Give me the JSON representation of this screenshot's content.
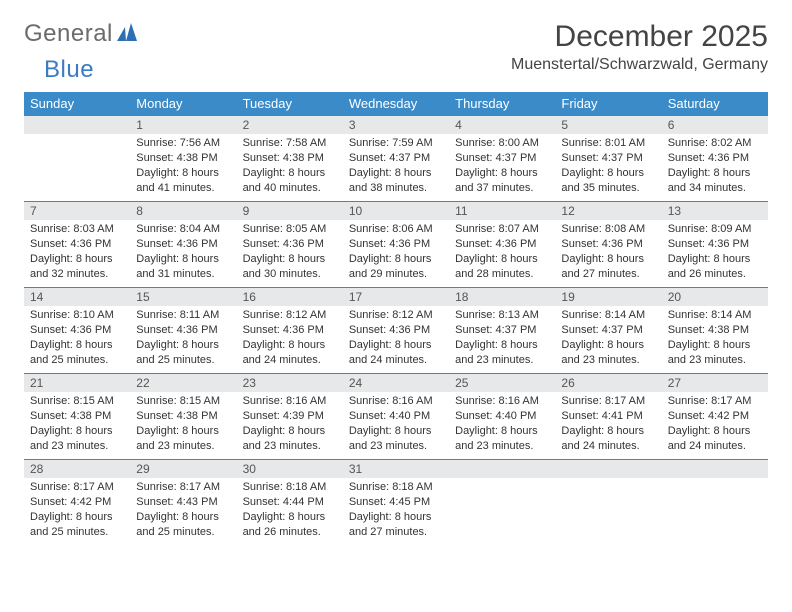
{
  "brand": {
    "part1": "General",
    "part2": "Blue"
  },
  "title": "December 2025",
  "location": "Muenstertal/Schwarzwald, Germany",
  "colors": {
    "header_bg": "#3b8bc9",
    "header_text": "#ffffff",
    "daynum_bg": "#e7e8e9",
    "daynum_border": "#5a7fa0",
    "text": "#333333",
    "brand_gray": "#6b6b6b",
    "brand_blue": "#3b7bc4"
  },
  "weekdays": [
    "Sunday",
    "Monday",
    "Tuesday",
    "Wednesday",
    "Thursday",
    "Friday",
    "Saturday"
  ],
  "first_weekday_offset": 1,
  "days": [
    {
      "n": 1,
      "sr": "7:56 AM",
      "ss": "4:38 PM",
      "dl": "8 hours and 41 minutes."
    },
    {
      "n": 2,
      "sr": "7:58 AM",
      "ss": "4:38 PM",
      "dl": "8 hours and 40 minutes."
    },
    {
      "n": 3,
      "sr": "7:59 AM",
      "ss": "4:37 PM",
      "dl": "8 hours and 38 minutes."
    },
    {
      "n": 4,
      "sr": "8:00 AM",
      "ss": "4:37 PM",
      "dl": "8 hours and 37 minutes."
    },
    {
      "n": 5,
      "sr": "8:01 AM",
      "ss": "4:37 PM",
      "dl": "8 hours and 35 minutes."
    },
    {
      "n": 6,
      "sr": "8:02 AM",
      "ss": "4:36 PM",
      "dl": "8 hours and 34 minutes."
    },
    {
      "n": 7,
      "sr": "8:03 AM",
      "ss": "4:36 PM",
      "dl": "8 hours and 32 minutes."
    },
    {
      "n": 8,
      "sr": "8:04 AM",
      "ss": "4:36 PM",
      "dl": "8 hours and 31 minutes."
    },
    {
      "n": 9,
      "sr": "8:05 AM",
      "ss": "4:36 PM",
      "dl": "8 hours and 30 minutes."
    },
    {
      "n": 10,
      "sr": "8:06 AM",
      "ss": "4:36 PM",
      "dl": "8 hours and 29 minutes."
    },
    {
      "n": 11,
      "sr": "8:07 AM",
      "ss": "4:36 PM",
      "dl": "8 hours and 28 minutes."
    },
    {
      "n": 12,
      "sr": "8:08 AM",
      "ss": "4:36 PM",
      "dl": "8 hours and 27 minutes."
    },
    {
      "n": 13,
      "sr": "8:09 AM",
      "ss": "4:36 PM",
      "dl": "8 hours and 26 minutes."
    },
    {
      "n": 14,
      "sr": "8:10 AM",
      "ss": "4:36 PM",
      "dl": "8 hours and 25 minutes."
    },
    {
      "n": 15,
      "sr": "8:11 AM",
      "ss": "4:36 PM",
      "dl": "8 hours and 25 minutes."
    },
    {
      "n": 16,
      "sr": "8:12 AM",
      "ss": "4:36 PM",
      "dl": "8 hours and 24 minutes."
    },
    {
      "n": 17,
      "sr": "8:12 AM",
      "ss": "4:36 PM",
      "dl": "8 hours and 24 minutes."
    },
    {
      "n": 18,
      "sr": "8:13 AM",
      "ss": "4:37 PM",
      "dl": "8 hours and 23 minutes."
    },
    {
      "n": 19,
      "sr": "8:14 AM",
      "ss": "4:37 PM",
      "dl": "8 hours and 23 minutes."
    },
    {
      "n": 20,
      "sr": "8:14 AM",
      "ss": "4:38 PM",
      "dl": "8 hours and 23 minutes."
    },
    {
      "n": 21,
      "sr": "8:15 AM",
      "ss": "4:38 PM",
      "dl": "8 hours and 23 minutes."
    },
    {
      "n": 22,
      "sr": "8:15 AM",
      "ss": "4:38 PM",
      "dl": "8 hours and 23 minutes."
    },
    {
      "n": 23,
      "sr": "8:16 AM",
      "ss": "4:39 PM",
      "dl": "8 hours and 23 minutes."
    },
    {
      "n": 24,
      "sr": "8:16 AM",
      "ss": "4:40 PM",
      "dl": "8 hours and 23 minutes."
    },
    {
      "n": 25,
      "sr": "8:16 AM",
      "ss": "4:40 PM",
      "dl": "8 hours and 23 minutes."
    },
    {
      "n": 26,
      "sr": "8:17 AM",
      "ss": "4:41 PM",
      "dl": "8 hours and 24 minutes."
    },
    {
      "n": 27,
      "sr": "8:17 AM",
      "ss": "4:42 PM",
      "dl": "8 hours and 24 minutes."
    },
    {
      "n": 28,
      "sr": "8:17 AM",
      "ss": "4:42 PM",
      "dl": "8 hours and 25 minutes."
    },
    {
      "n": 29,
      "sr": "8:17 AM",
      "ss": "4:43 PM",
      "dl": "8 hours and 25 minutes."
    },
    {
      "n": 30,
      "sr": "8:18 AM",
      "ss": "4:44 PM",
      "dl": "8 hours and 26 minutes."
    },
    {
      "n": 31,
      "sr": "8:18 AM",
      "ss": "4:45 PM",
      "dl": "8 hours and 27 minutes."
    }
  ],
  "labels": {
    "sunrise": "Sunrise:",
    "sunset": "Sunset:",
    "daylight": "Daylight:"
  }
}
